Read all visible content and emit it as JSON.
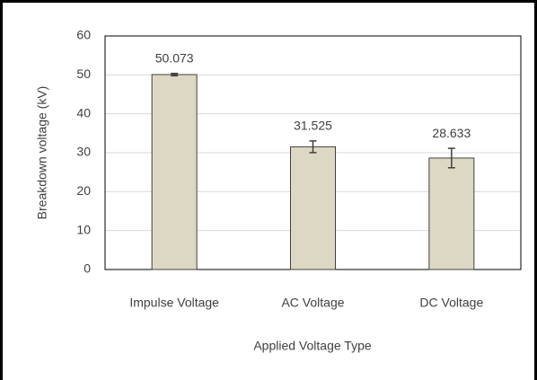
{
  "chart_data": {
    "type": "bar",
    "x_label": "Applied Voltage Type",
    "y_label": "Breakdown voltage (kV)",
    "categories": [
      "Impulse Voltage",
      "AC Voltage",
      "DC Voltage"
    ],
    "values": [
      50.073,
      31.525,
      28.633
    ],
    "errors": [
      0.3,
      1.5,
      2.5
    ],
    "color": "#ddd8c4",
    "ylim": [
      0,
      60
    ],
    "yticks": [
      0,
      10,
      20,
      30,
      40,
      50,
      60
    ],
    "grid": true
  }
}
